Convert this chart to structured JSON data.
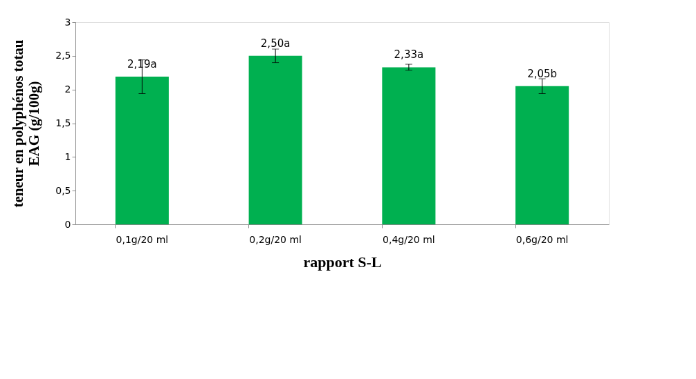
{
  "chart_data": {
    "type": "bar",
    "xlabel": "rapport S-L",
    "ylabel": "teneur en polyphénos totau\nEAG (g/100g)",
    "categories": [
      "0,1g/20 ml",
      "0,2g/20 ml",
      "0,4g/20 ml",
      "0,6g/20 ml"
    ],
    "values": [
      2.19,
      2.5,
      2.33,
      2.05
    ],
    "errors": [
      0.25,
      0.1,
      0.045,
      0.11
    ],
    "value_labels": [
      "2,19a",
      "2,50a",
      "2,33a",
      "2,05b"
    ],
    "color": "#00b050",
    "ylim": [
      0,
      3
    ],
    "yticks": [
      0,
      {
        "value": 0.5,
        "label": "0,5"
      },
      1,
      {
        "value": 1.5,
        "label": "1,5"
      },
      2,
      {
        "value": 2.5,
        "label": "2,5"
      },
      3
    ],
    "grid": false
  }
}
